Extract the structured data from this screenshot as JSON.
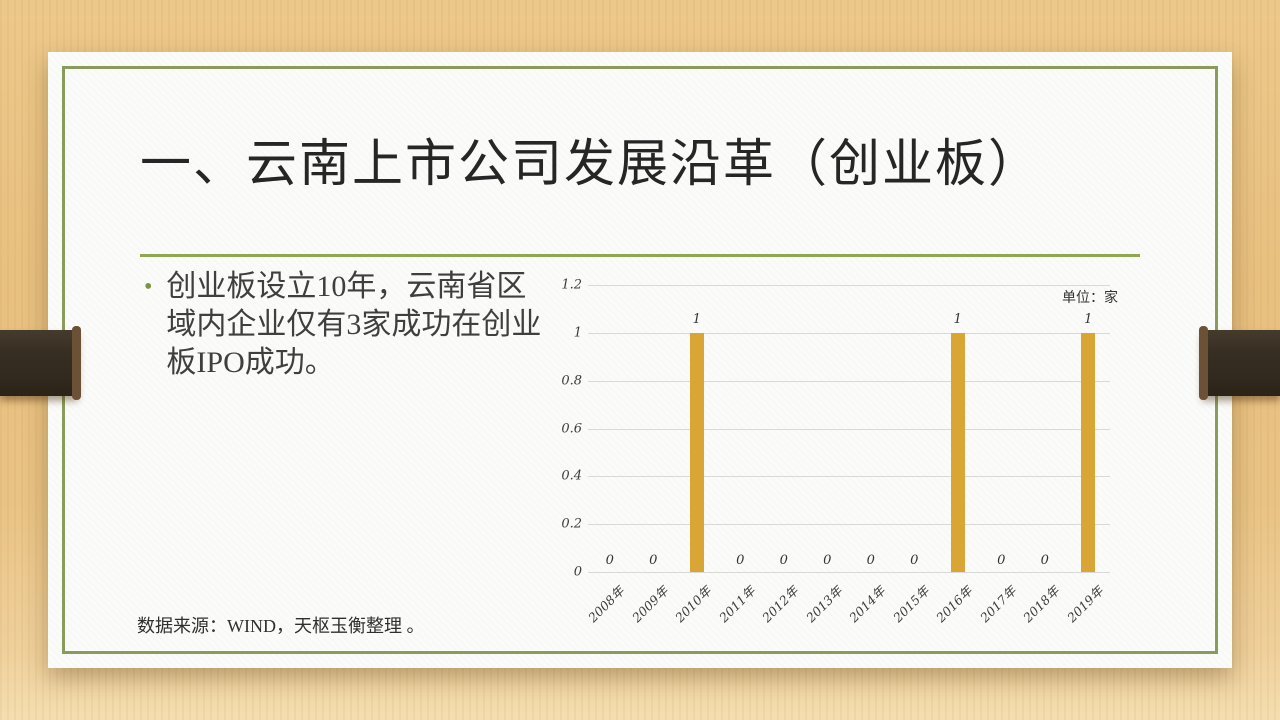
{
  "slide": {
    "title": "一、云南上市公司发展沿革（创业板）",
    "bullet": {
      "marker": "•",
      "text": "创业板设立10年，云南省区域内企业仅有3家成功在创业板IPO成功。"
    },
    "source": "数据来源：WIND，天枢玉衡整理 。"
  },
  "chart_data": {
    "type": "bar",
    "title": "",
    "unit_label": "单位：家",
    "categories": [
      "2008年",
      "2009年",
      "2010年",
      "2011年",
      "2012年",
      "2013年",
      "2014年",
      "2015年",
      "2016年",
      "2017年",
      "2018年",
      "2019年"
    ],
    "values": [
      0,
      0,
      1,
      0,
      0,
      0,
      0,
      0,
      1,
      0,
      0,
      1
    ],
    "xlabel": "",
    "ylabel": "",
    "ylim": [
      0,
      1.2
    ],
    "yticks": [
      "0",
      "0.2",
      "0.4",
      "0.6",
      "0.8",
      "1",
      "1.2"
    ],
    "grid": true,
    "legend": "none",
    "data_labels": true,
    "bar_color": "#D9A636"
  },
  "colors": {
    "background_wood": "#E8C287",
    "paper": "#FBFBF9",
    "border_green": "#8A9B5C",
    "divider_green": "#8FA653",
    "bullet_green": "#7C9440",
    "ribbon_brown": "#352C20",
    "bar_gold": "#D9A636",
    "gridline": "#D9D9D9",
    "title_text": "#262626",
    "body_text": "#3F3F3F"
  }
}
